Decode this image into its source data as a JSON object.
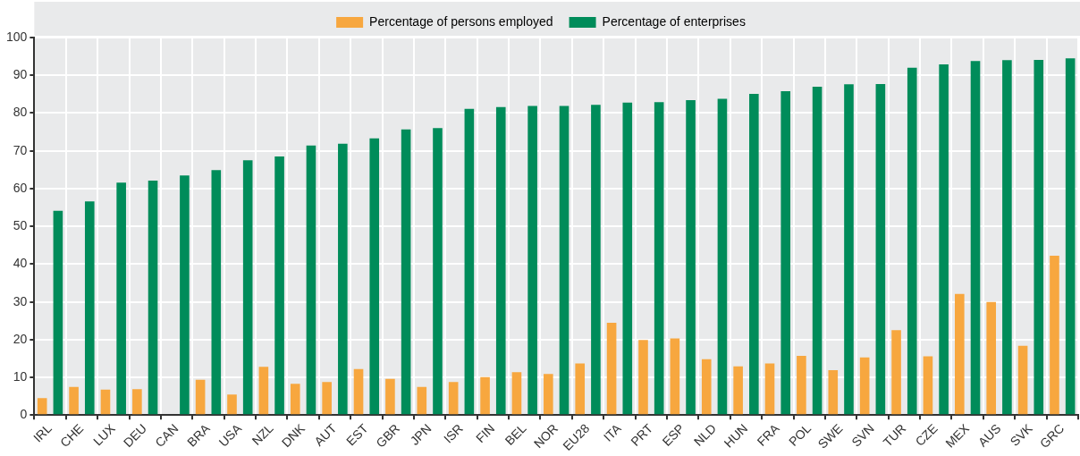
{
  "chart_data": {
    "type": "bar",
    "categories": [
      "IRL",
      "CHE",
      "LUX",
      "DEU",
      "CAN",
      "BRA",
      "USA",
      "NZL",
      "DNK",
      "AUT",
      "EST",
      "GBR",
      "JPN",
      "ISR",
      "FIN",
      "BEL",
      "NOR",
      "EU28",
      "ITA",
      "PRT",
      "ESP",
      "NLD",
      "HUN",
      "FRA",
      "POL",
      "SWE",
      "SVN",
      "TUR",
      "CZE",
      "MEX",
      "AUS",
      "SVK",
      "GRC"
    ],
    "series": [
      {
        "name": "Percentage of persons employed",
        "color": "#f7a73f",
        "values": [
          4.5,
          7.5,
          6.8,
          6.9,
          null,
          9.4,
          5.5,
          12.8,
          8.3,
          8.8,
          12.2,
          9.6,
          7.5,
          8.8,
          10.1,
          11.4,
          10.9,
          13.7,
          24.5,
          19.9,
          20.3,
          14.8,
          12.9,
          13.7,
          15.7,
          11.9,
          15.3,
          22.5,
          15.6,
          32.1,
          30.0,
          18.4,
          42.2
        ]
      },
      {
        "name": "Percentage of enterprises",
        "color": "#008c5a",
        "values": [
          54.1,
          56.6,
          61.6,
          62.1,
          63.5,
          64.9,
          67.5,
          68.5,
          71.4,
          71.9,
          73.3,
          75.7,
          76.0,
          81.1,
          81.6,
          81.9,
          81.9,
          82.2,
          82.8,
          82.9,
          83.4,
          83.8,
          85.1,
          85.8,
          87.0,
          87.6,
          87.7,
          92.0,
          92.9,
          93.8,
          94.0,
          94.1,
          94.5
        ]
      }
    ],
    "ylim": [
      0,
      100
    ],
    "yticks": [
      0,
      10,
      20,
      30,
      40,
      50,
      60,
      70,
      80,
      90,
      100
    ],
    "grid": true,
    "legend": "top"
  }
}
